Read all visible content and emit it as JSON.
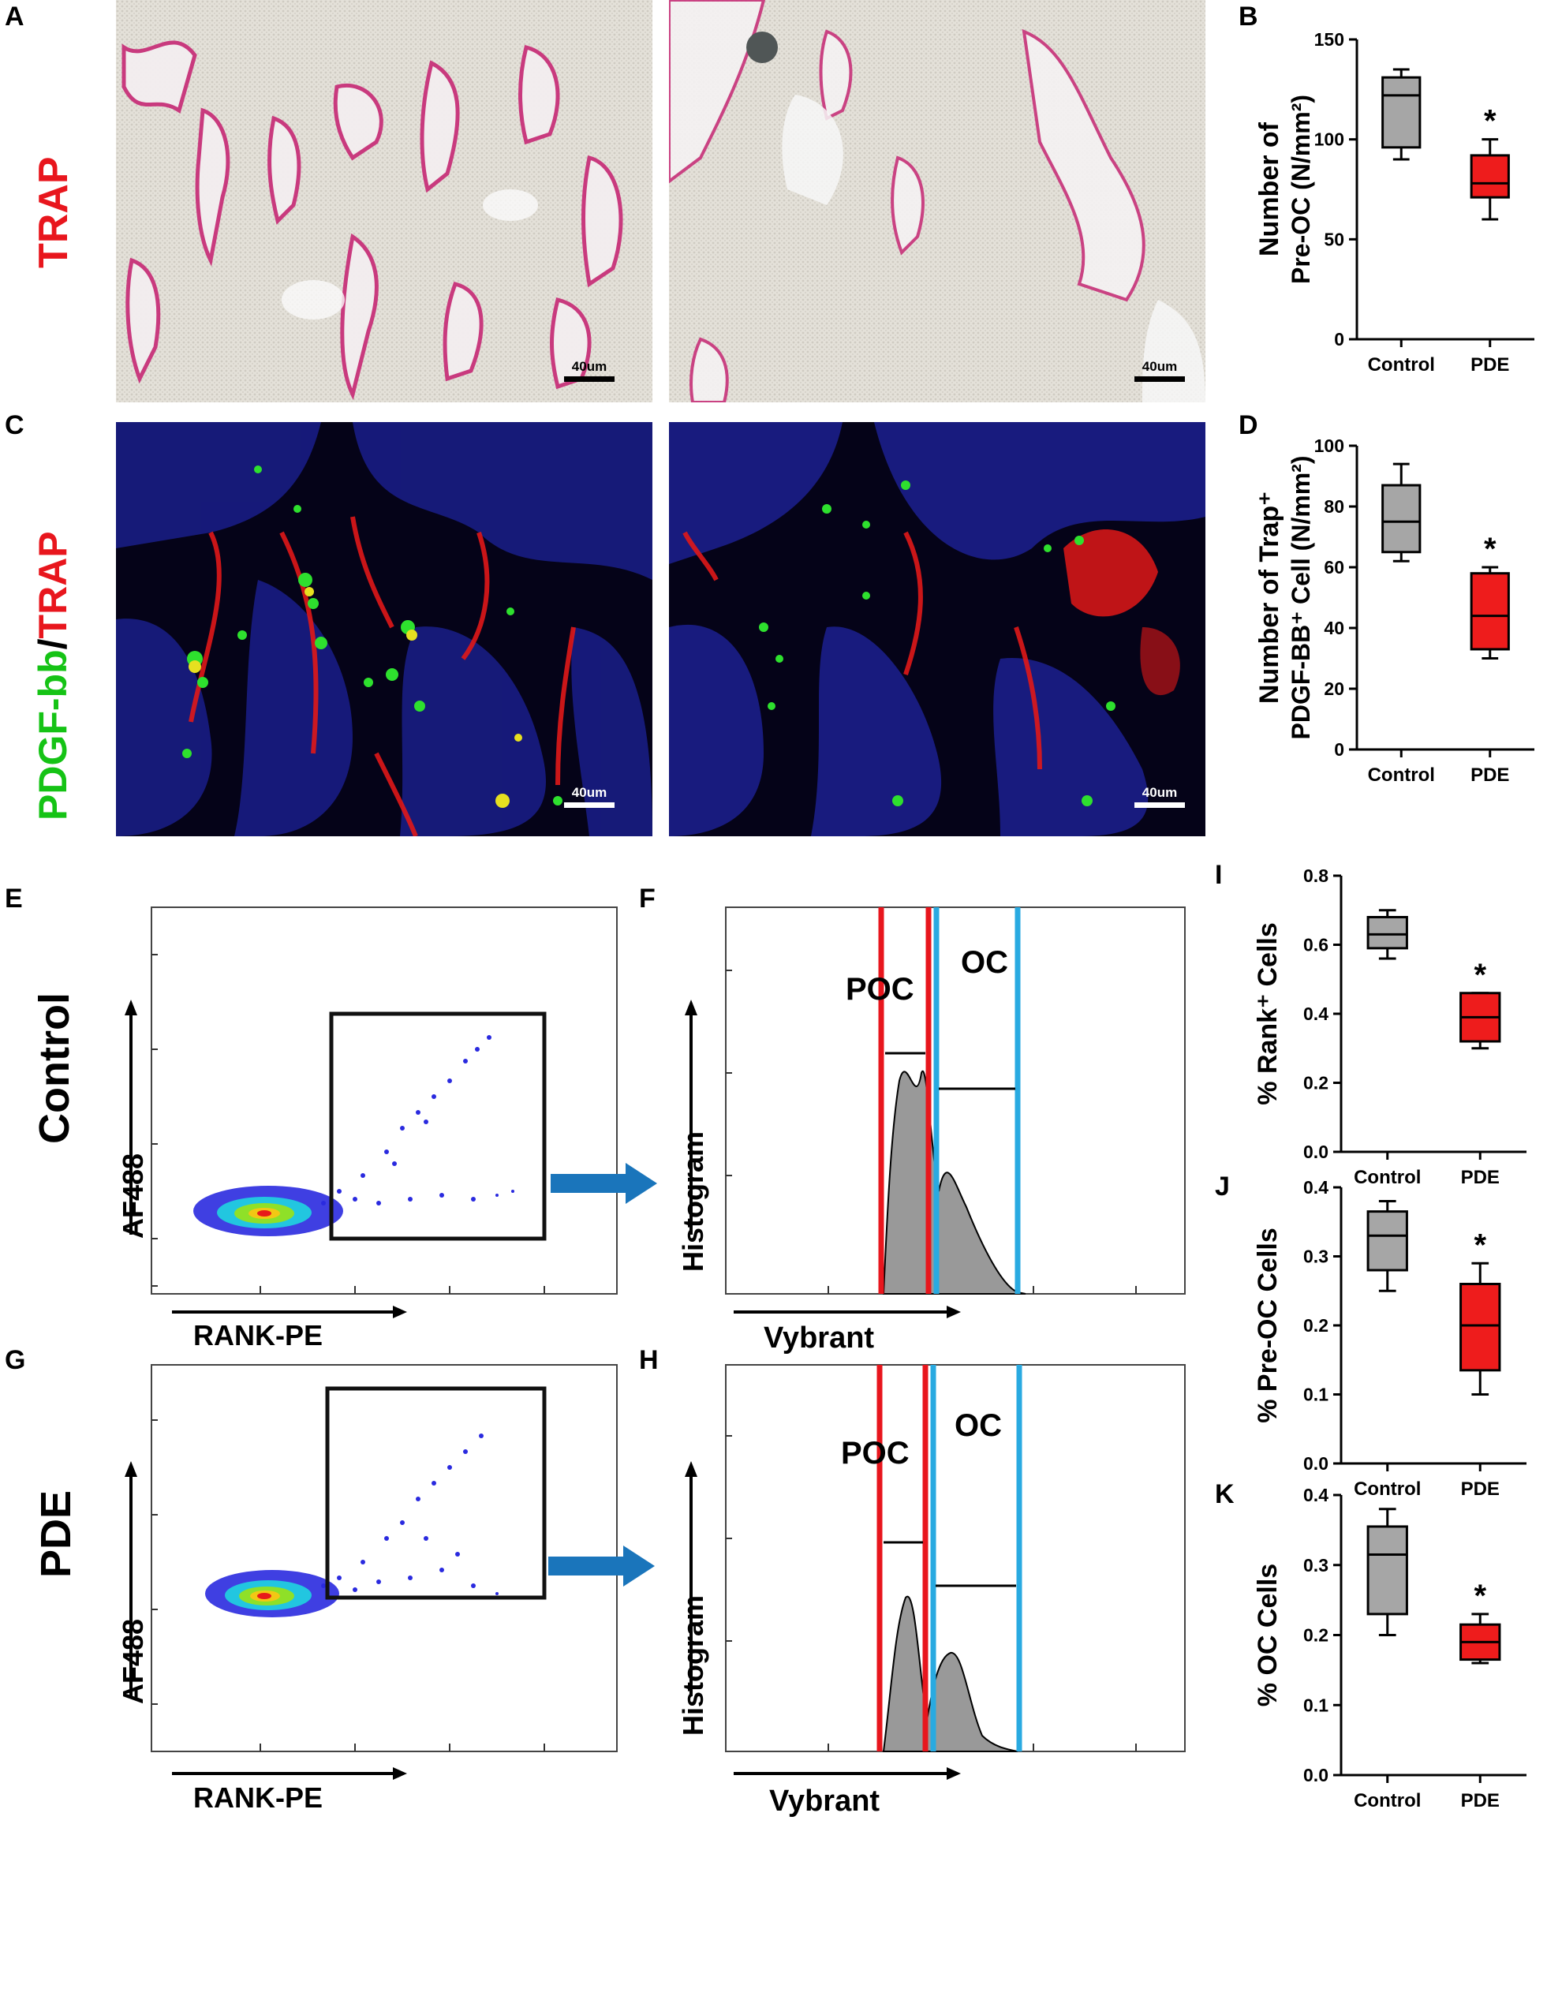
{
  "panels": {
    "A": "A",
    "B": "B",
    "C": "C",
    "D": "D",
    "E": "E",
    "F": "F",
    "G": "G",
    "H": "H",
    "I": "I",
    "J": "J",
    "K": "K"
  },
  "stain_labels": {
    "trap": "TRAP",
    "pdgf_part": "PDGF-bb",
    "slash": "/",
    "trap_part": "TRAP"
  },
  "scale_bar": "40um",
  "row_labels": {
    "control": "Control",
    "pde": "PDE"
  },
  "flow": {
    "x_axis": "RANK-PE",
    "y_axis": "AF488",
    "hist_x_axis": "Vybrant",
    "hist_y_axis": "Histogram",
    "poc_label": "POC",
    "oc_label": "OC"
  },
  "colors": {
    "control_box": "#a6a6a6",
    "pde_box": "#ee1c1c",
    "trap_pink": "#c8327a",
    "pdgf_green": "#15c315",
    "gate_red": "#e8161d",
    "gate_blue": "#29aae1",
    "arrow_blue": "#1a75bb"
  },
  "chart_data": [
    {
      "id": "B",
      "type": "box",
      "ylabel_line1": "Number of",
      "ylabel_line2": "Pre-OC (N/mm²)",
      "ylim": [
        0,
        150
      ],
      "yticks": [
        "0",
        "50",
        "100",
        "150"
      ],
      "categories": [
        "Control",
        "PDE"
      ],
      "boxes": [
        {
          "min": 90,
          "q1": 96,
          "median": 122,
          "q3": 131,
          "max": 135
        },
        {
          "min": 60,
          "q1": 71,
          "median": 78,
          "q3": 92,
          "max": 100
        }
      ],
      "significance": "*"
    },
    {
      "id": "D",
      "type": "box",
      "ylabel_line1": "Number of Trap⁺",
      "ylabel_line2": "PDGF-BB⁺ Cell (N/mm²)",
      "ylim": [
        0,
        100
      ],
      "yticks": [
        "0",
        "20",
        "40",
        "60",
        "80",
        "100"
      ],
      "categories": [
        "Control",
        "PDE"
      ],
      "boxes": [
        {
          "min": 62,
          "q1": 65,
          "median": 75,
          "q3": 87,
          "max": 94
        },
        {
          "min": 30,
          "q1": 33,
          "median": 44,
          "q3": 58,
          "max": 60
        }
      ],
      "significance": "*"
    },
    {
      "id": "I",
      "type": "box",
      "ylabel_line1": "% Rank⁺ Cells",
      "ylabel_line2": "",
      "ylim": [
        0,
        0.8
      ],
      "yticks": [
        "0.0",
        "0.2",
        "0.4",
        "0.6",
        "0.8"
      ],
      "categories": [
        "Control",
        "PDE"
      ],
      "boxes": [
        {
          "min": 0.56,
          "q1": 0.59,
          "median": 0.63,
          "q3": 0.68,
          "max": 0.7
        },
        {
          "min": 0.3,
          "q1": 0.32,
          "median": 0.39,
          "q3": 0.46,
          "max": 0.46
        }
      ],
      "significance": "*"
    },
    {
      "id": "J",
      "type": "box",
      "ylabel_line1": "% Pre-OC Cells",
      "ylabel_line2": "",
      "ylim": [
        0,
        0.4
      ],
      "yticks": [
        "0.0",
        "0.1",
        "0.2",
        "0.3",
        "0.4"
      ],
      "categories": [
        "Control",
        "PDE"
      ],
      "boxes": [
        {
          "min": 0.25,
          "q1": 0.28,
          "median": 0.33,
          "q3": 0.365,
          "max": 0.38
        },
        {
          "min": 0.1,
          "q1": 0.135,
          "median": 0.2,
          "q3": 0.26,
          "max": 0.29
        }
      ],
      "significance": "*"
    },
    {
      "id": "K",
      "type": "box",
      "ylabel_line1": "% OC Cells",
      "ylabel_line2": "",
      "ylim": [
        0,
        0.4
      ],
      "yticks": [
        "0.0",
        "0.1",
        "0.2",
        "0.3",
        "0.4"
      ],
      "categories": [
        "Control",
        "PDE"
      ],
      "boxes": [
        {
          "min": 0.2,
          "q1": 0.23,
          "median": 0.315,
          "q3": 0.355,
          "max": 0.38
        },
        {
          "min": 0.16,
          "q1": 0.165,
          "median": 0.19,
          "q3": 0.215,
          "max": 0.23
        }
      ],
      "significance": "*"
    }
  ]
}
